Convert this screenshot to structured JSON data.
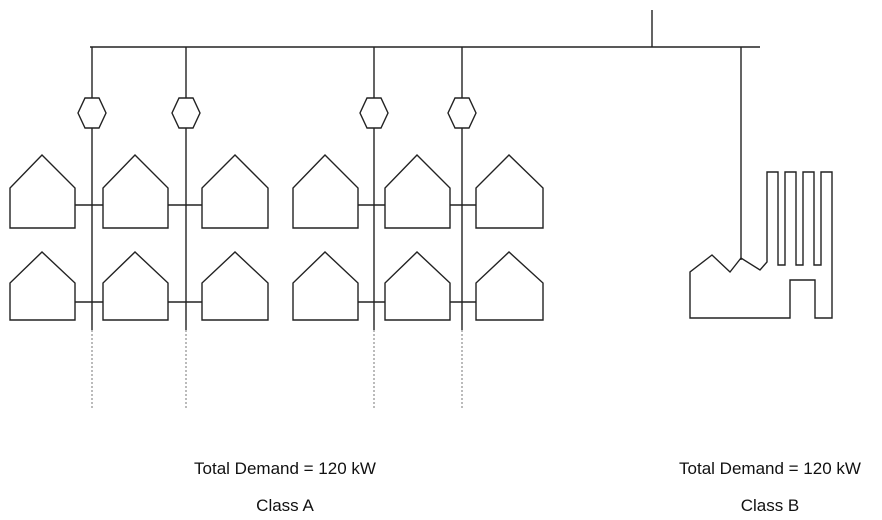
{
  "groups": [
    {
      "demand": "Total Demand = 120 kW",
      "class": "Class A"
    },
    {
      "demand": "Total Demand = 120 kW",
      "class": "Class B"
    }
  ]
}
